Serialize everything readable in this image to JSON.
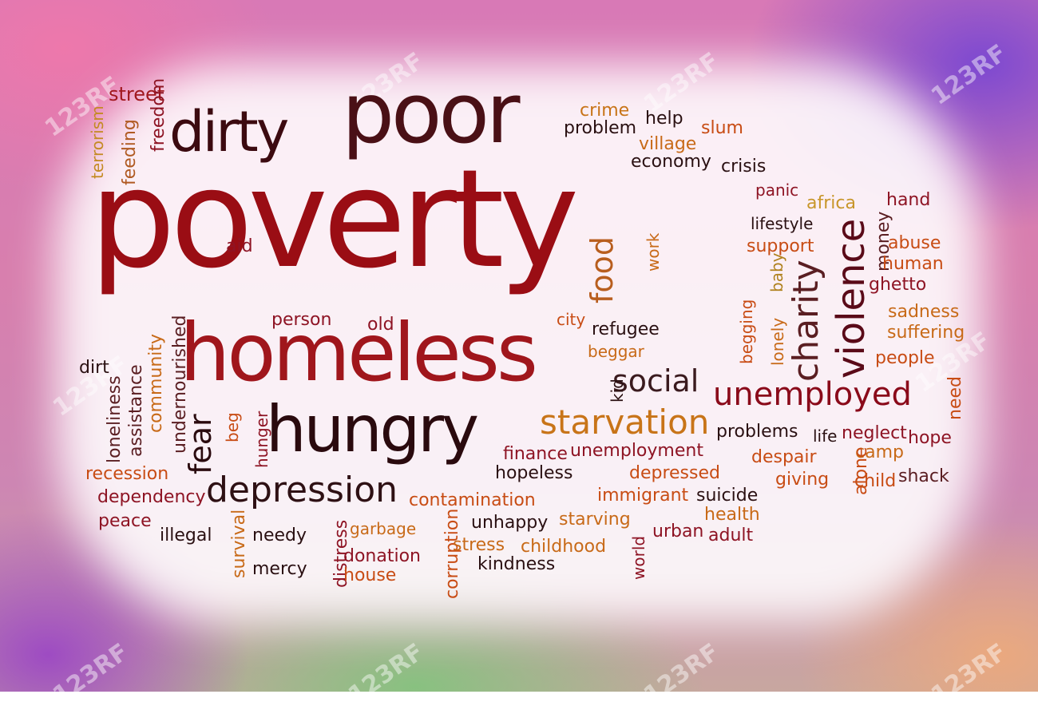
{
  "watermark_text": "123RF",
  "words": [
    {
      "text": "poverty",
      "color": "#9a0d14"
    },
    {
      "text": "homeless",
      "color": "#a0161c"
    },
    {
      "text": "poor",
      "color": "#4a1016"
    },
    {
      "text": "dirty",
      "color": "#3c0a10"
    },
    {
      "text": "hungry",
      "color": "#2a0a0e"
    },
    {
      "text": "depression",
      "color": "#2e1014"
    },
    {
      "text": "starvation",
      "color": "#c87418"
    },
    {
      "text": "unemployed",
      "color": "#8a0a1a"
    },
    {
      "text": "violence",
      "color": "#5a0a18"
    },
    {
      "text": "charity",
      "color": "#5a1e22"
    },
    {
      "text": "social",
      "color": "#3a1a1e"
    },
    {
      "text": "food",
      "color": "#b85e1e"
    },
    {
      "text": "fear",
      "color": "#2a0a0e"
    },
    {
      "text": "street",
      "color": "#a0181e"
    },
    {
      "text": "freedom",
      "color": "#8e1424"
    },
    {
      "text": "feeding",
      "color": "#b05a22"
    },
    {
      "text": "terrorism",
      "color": "#c48a22"
    },
    {
      "text": "crime",
      "color": "#c87418"
    },
    {
      "text": "problem",
      "color": "#2a1012"
    },
    {
      "text": "help",
      "color": "#2a1012"
    },
    {
      "text": "slum",
      "color": "#c84c14"
    },
    {
      "text": "village",
      "color": "#c86a18"
    },
    {
      "text": "economy",
      "color": "#2a1012"
    },
    {
      "text": "crisis",
      "color": "#2a1012"
    },
    {
      "text": "panic",
      "color": "#8e1424"
    },
    {
      "text": "africa",
      "color": "#c8962a"
    },
    {
      "text": "hand",
      "color": "#8e1424"
    },
    {
      "text": "lifestyle",
      "color": "#2a1012"
    },
    {
      "text": "money",
      "color": "#5a1e22"
    },
    {
      "text": "support",
      "color": "#c84c14"
    },
    {
      "text": "abuse",
      "color": "#c84c14"
    },
    {
      "text": "work",
      "color": "#c86a18"
    },
    {
      "text": "human",
      "color": "#c84c14"
    },
    {
      "text": "ghetto",
      "color": "#8e1424"
    },
    {
      "text": "baby",
      "color": "#b0821e"
    },
    {
      "text": "aid",
      "color": "#8e1424"
    },
    {
      "text": "sadness",
      "color": "#c86a18"
    },
    {
      "text": "begging",
      "color": "#c84c14"
    },
    {
      "text": "lonely",
      "color": "#c86a18"
    },
    {
      "text": "suffering",
      "color": "#c86a18"
    },
    {
      "text": "person",
      "color": "#8e1424"
    },
    {
      "text": "old",
      "color": "#8e1424"
    },
    {
      "text": "city",
      "color": "#c84c14"
    },
    {
      "text": "refugee",
      "color": "#2a1012"
    },
    {
      "text": "people",
      "color": "#c84c14"
    },
    {
      "text": "beggar",
      "color": "#c86a18"
    },
    {
      "text": "undernourished",
      "color": "#5a1e22"
    },
    {
      "text": "community",
      "color": "#c86a18"
    },
    {
      "text": "dirt",
      "color": "#2a1012"
    },
    {
      "text": "assistance",
      "color": "#5a1e22"
    },
    {
      "text": "loneliness",
      "color": "#5a1e22"
    },
    {
      "text": "need",
      "color": "#c84c14"
    },
    {
      "text": "kid",
      "color": "#2a1012"
    },
    {
      "text": "beg",
      "color": "#c84c14"
    },
    {
      "text": "hunger",
      "color": "#8e1424"
    },
    {
      "text": "problems",
      "color": "#2a1012"
    },
    {
      "text": "life",
      "color": "#2a1012"
    },
    {
      "text": "neglect",
      "color": "#8e1424"
    },
    {
      "text": "hope",
      "color": "#8e1424"
    },
    {
      "text": "finance",
      "color": "#8e1424"
    },
    {
      "text": "unemployment",
      "color": "#8e1424"
    },
    {
      "text": "despair",
      "color": "#c84c14"
    },
    {
      "text": "camp",
      "color": "#c86a18"
    },
    {
      "text": "recession",
      "color": "#c84c14"
    },
    {
      "text": "hopeless",
      "color": "#2a1012"
    },
    {
      "text": "depressed",
      "color": "#c84c14"
    },
    {
      "text": "giving",
      "color": "#c84c14"
    },
    {
      "text": "alone",
      "color": "#c84c14"
    },
    {
      "text": "child",
      "color": "#c84c14"
    },
    {
      "text": "shack",
      "color": "#5a1e22"
    },
    {
      "text": "dependency",
      "color": "#8e1424"
    },
    {
      "text": "contamination",
      "color": "#c84c14"
    },
    {
      "text": "immigrant",
      "color": "#c84c14"
    },
    {
      "text": "suicide",
      "color": "#2a1012"
    },
    {
      "text": "peace",
      "color": "#8e1424"
    },
    {
      "text": "health",
      "color": "#c86a18"
    },
    {
      "text": "illegal",
      "color": "#2a1012"
    },
    {
      "text": "survival",
      "color": "#c86a18"
    },
    {
      "text": "needy",
      "color": "#2a1012"
    },
    {
      "text": "distress",
      "color": "#8e1424"
    },
    {
      "text": "garbage",
      "color": "#c86a18"
    },
    {
      "text": "unhappy",
      "color": "#2a1012"
    },
    {
      "text": "starving",
      "color": "#c86a18"
    },
    {
      "text": "urban",
      "color": "#8e1424"
    },
    {
      "text": "adult",
      "color": "#8e1424"
    },
    {
      "text": "corruption",
      "color": "#c84c14"
    },
    {
      "text": "world",
      "color": "#8e1424"
    },
    {
      "text": "stress",
      "color": "#c86a18"
    },
    {
      "text": "childhood",
      "color": "#c86a18"
    },
    {
      "text": "donation",
      "color": "#8e1424"
    },
    {
      "text": "mercy",
      "color": "#2a1012"
    },
    {
      "text": "house",
      "color": "#c84c14"
    },
    {
      "text": "kindness",
      "color": "#2a1012"
    }
  ]
}
